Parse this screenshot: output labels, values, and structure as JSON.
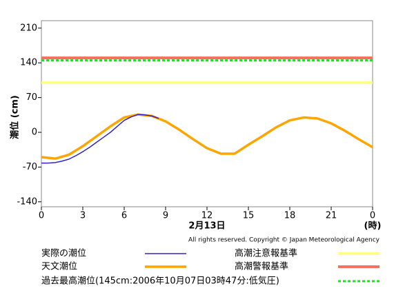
{
  "chart_data": {
    "type": "line",
    "x_label": "2月13日",
    "x_unit": "(時)",
    "y_label": "潮位 (cm)",
    "credit": "All rights reserved. Copyright © Japan Meteorological Agency",
    "xlim": [
      0,
      24
    ],
    "xticks": [
      0,
      3,
      6,
      9,
      12,
      15,
      18,
      21,
      {
        "value": 24,
        "label": "0"
      }
    ],
    "ylim": [
      -150,
      225
    ],
    "yticks": [
      210,
      140,
      70,
      0,
      -70,
      -140
    ],
    "grid": false,
    "series": [
      {
        "name": "実際の潮位",
        "color": "#3322cc",
        "x": [
          0,
          0.5,
          1,
          1.5,
          2,
          2.5,
          3,
          3.5,
          4,
          4.5,
          5,
          5.5,
          6,
          6.5,
          7,
          7.5,
          8,
          8.5
        ],
        "values": [
          -62,
          -62,
          -61,
          -58,
          -54,
          -47,
          -39,
          -30,
          -20,
          -10,
          0,
          12,
          24,
          31,
          36,
          35,
          33,
          28
        ]
      },
      {
        "name": "天文潮位",
        "color": "#ffa500",
        "x": [
          0,
          1,
          2,
          3,
          4,
          5,
          6,
          7,
          8,
          9,
          10,
          11,
          12,
          13,
          14,
          15,
          16,
          17,
          18,
          19,
          20,
          21,
          22,
          23,
          24
        ],
        "values": [
          -50,
          -53,
          -45,
          -28,
          -8,
          12,
          30,
          36,
          33,
          22,
          5,
          -14,
          -32,
          -43,
          -43,
          -25,
          -8,
          10,
          24,
          30,
          28,
          18,
          3,
          -14,
          -30
        ]
      }
    ],
    "reference_lines": [
      {
        "name": "高潮注意報基準",
        "color": "#ffff88",
        "value": 100,
        "dashed": false
      },
      {
        "name": "高潮警報基準",
        "color": "#f87060",
        "value": 150,
        "dashed": false
      },
      {
        "name": "過去最高潮位(145cm:2006年10月07日03時47分:低気圧)",
        "color": "#22dd22",
        "value": 145,
        "dashed": true
      }
    ]
  }
}
